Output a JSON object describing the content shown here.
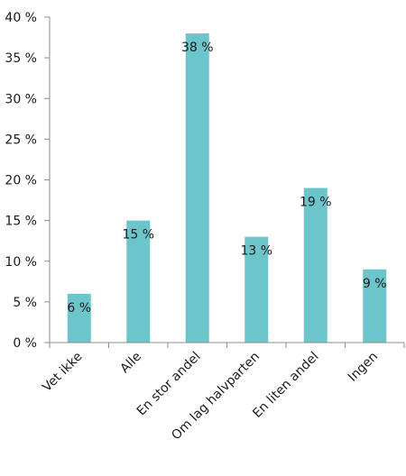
{
  "chart_data": {
    "type": "bar",
    "title": "",
    "xlabel": "",
    "ylabel": "",
    "categories": [
      "Vet ikke",
      "Alle",
      "En stor andel",
      "Om lag halvparten",
      "En liten andel",
      "Ingen"
    ],
    "values": [
      6,
      15,
      38,
      13,
      19,
      9
    ],
    "data_labels": [
      "6 %",
      "15 %",
      "38 %",
      "13 %",
      "19 %",
      "9 %"
    ],
    "ylim": [
      0,
      40
    ],
    "yticks": [
      0,
      5,
      10,
      15,
      20,
      25,
      30,
      35,
      40
    ],
    "ytick_labels": [
      "0 %",
      "5 %",
      "10 %",
      "15 %",
      "20 %",
      "25 %",
      "30 %",
      "35 %",
      "40 %"
    ],
    "grid": false,
    "legend": "none",
    "bar_color": "#6cc5cb",
    "axis_color": "#8c8c8c"
  }
}
